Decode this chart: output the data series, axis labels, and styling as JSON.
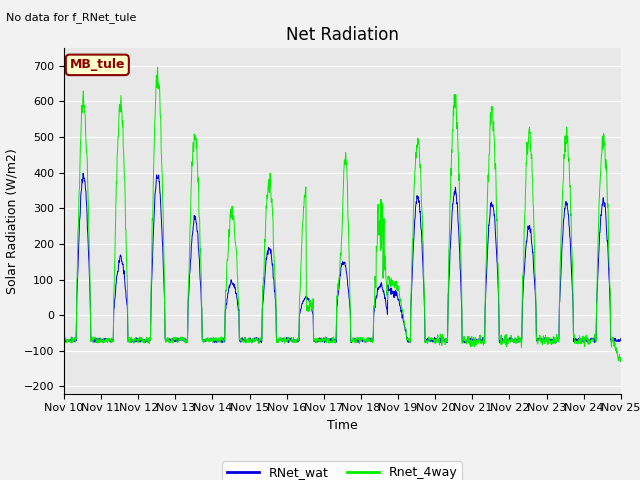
{
  "title": "Net Radiation",
  "top_left_text": "No data for f_RNet_tule",
  "box_label": "MB_tule",
  "ylabel": "Solar Radiation (W/m2)",
  "xlabel": "Time",
  "ylim": [
    -200,
    750
  ],
  "yticks": [
    -200,
    -100,
    0,
    100,
    200,
    300,
    400,
    500,
    600,
    700
  ],
  "num_days": 15,
  "points_per_day": 144,
  "start_day": 10,
  "line_blue_color": "#0000dd",
  "line_green_color": "#00ee00",
  "plot_bg_color": "#e8e8e8",
  "fig_bg_color": "#f2f2f2",
  "legend_bg": "#ffffcc",
  "legend_border": "#8b0000",
  "title_fontsize": 12,
  "label_fontsize": 9,
  "tick_fontsize": 8,
  "day_peaks_blue": [
    390,
    160,
    395,
    270,
    95,
    190,
    50,
    150,
    85,
    330,
    350,
    320,
    250,
    315,
    320
  ],
  "day_peaks_green": [
    600,
    590,
    670,
    510,
    290,
    370,
    365,
    495,
    390,
    490,
    605,
    570,
    500,
    505,
    498
  ],
  "night_blue": -70,
  "night_green": -70
}
